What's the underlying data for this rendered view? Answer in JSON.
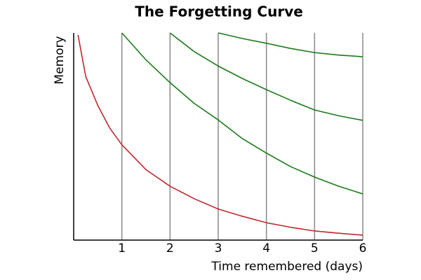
{
  "chart_data": {
    "type": "line",
    "title": "The Forgetting Curve",
    "x_label": "Time remembered (days)",
    "y_label": "Memory",
    "xlim": [
      0,
      6
    ],
    "xticks": [
      1,
      2,
      3,
      4,
      5,
      6
    ],
    "ylim": [
      0,
      100
    ],
    "grid": true,
    "series": [
      {
        "color": "#c1272d",
        "x": [
          0.09,
          0.25,
          0.5,
          0.75,
          1,
          1.5,
          2,
          2.5,
          3,
          3.5,
          4,
          4.5,
          5,
          5.5,
          6
        ],
        "values": [
          99,
          79,
          65,
          54,
          46,
          34,
          26,
          20,
          15,
          11.5,
          8.4,
          6.2,
          4.4,
          3.3,
          2.4
        ]
      },
      {
        "color": "#1a7a1a",
        "x": [
          1,
          1.5,
          2,
          2.5,
          3,
          3.5,
          4,
          4.5,
          5,
          5.5,
          6
        ],
        "values": [
          100,
          87,
          76,
          66,
          58,
          49,
          42,
          35.5,
          30.4,
          26,
          22.3
        ]
      },
      {
        "color": "#1a7a1a",
        "x": [
          2,
          2.5,
          3,
          3.5,
          4,
          4.5,
          5,
          5.5,
          6
        ],
        "values": [
          100,
          91,
          84,
          78,
          72.6,
          67.5,
          62.8,
          60,
          57.8
        ]
      },
      {
        "color": "#1a7a1a",
        "x": [
          3,
          3.5,
          4,
          4.5,
          5,
          5.5,
          6
        ],
        "values": [
          100,
          97.3,
          95,
          92.5,
          90.5,
          89.3,
          88.5
        ]
      }
    ]
  }
}
